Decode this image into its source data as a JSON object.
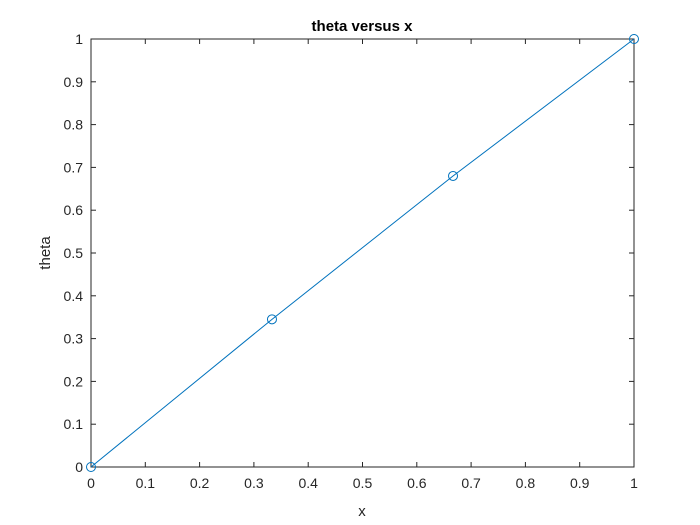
{
  "chart_data": {
    "type": "line",
    "title": "theta versus x",
    "xlabel": "x",
    "ylabel": "theta",
    "xlim": [
      0,
      1
    ],
    "ylim": [
      0,
      1
    ],
    "xticks": [
      "0",
      "0.1",
      "0.2",
      "0.3",
      "0.4",
      "0.5",
      "0.6",
      "0.7",
      "0.8",
      "0.9",
      "1"
    ],
    "yticks": [
      "0",
      "0.1",
      "0.2",
      "0.3",
      "0.4",
      "0.5",
      "0.6",
      "0.7",
      "0.8",
      "0.9",
      "1"
    ],
    "grid": false,
    "box": true,
    "series": [
      {
        "x": [
          0,
          0.3333,
          0.6667,
          1
        ],
        "y": [
          0,
          0.345,
          0.68,
          1
        ],
        "marker": "circle",
        "color": "#0072BD"
      }
    ]
  }
}
